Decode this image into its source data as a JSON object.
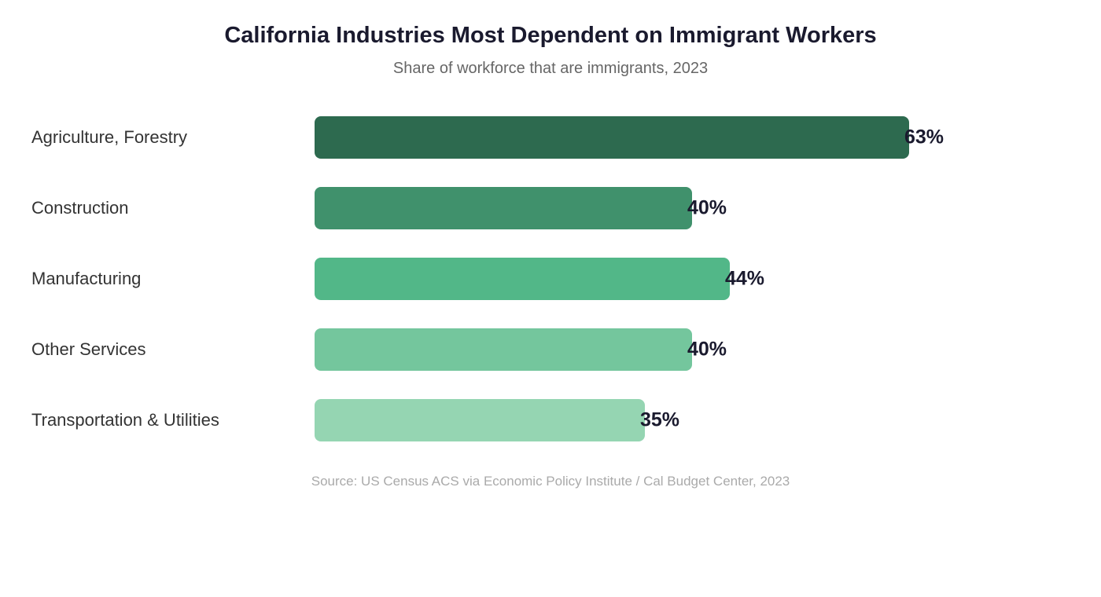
{
  "header": {
    "title": "California Industries Most Dependent on Immigrant Workers",
    "subtitle": "Share of workforce that are immigrants, 2023"
  },
  "footer": {
    "source": "Source: US Census ACS via Economic Policy Institute / Cal Budget Center, 2023"
  },
  "colors": {
    "title_text": "#1a1a2e",
    "subtitle_text": "#666666",
    "category_label_text": "#333333",
    "value_label_text": "#1a1a2e",
    "source_text": "#aaaaaa",
    "background": "#ffffff",
    "bar_palette": [
      "#2d6a4f",
      "#40916c",
      "#52b788",
      "#74c69d",
      "#95d5b2"
    ]
  },
  "chart_data": {
    "type": "bar",
    "orientation": "horizontal",
    "title": "California Industries Most Dependent on Immigrant Workers",
    "subtitle": "Share of workforce that are immigrants, 2023",
    "source": "Source: US Census ACS via Economic Policy Institute / Cal Budget Center, 2023",
    "categories": [
      "Agriculture, Forestry",
      "Construction",
      "Manufacturing",
      "Other Services",
      "Transportation & Utilities"
    ],
    "values": [
      63,
      40,
      44,
      40,
      35
    ],
    "value_labels": [
      "63%",
      "40%",
      "44%",
      "40%",
      "35%"
    ],
    "unit": "%",
    "xlabel": "",
    "ylabel": "",
    "xlim": [
      0,
      63
    ],
    "grid": false,
    "legend": false,
    "sorted_descending": false
  }
}
